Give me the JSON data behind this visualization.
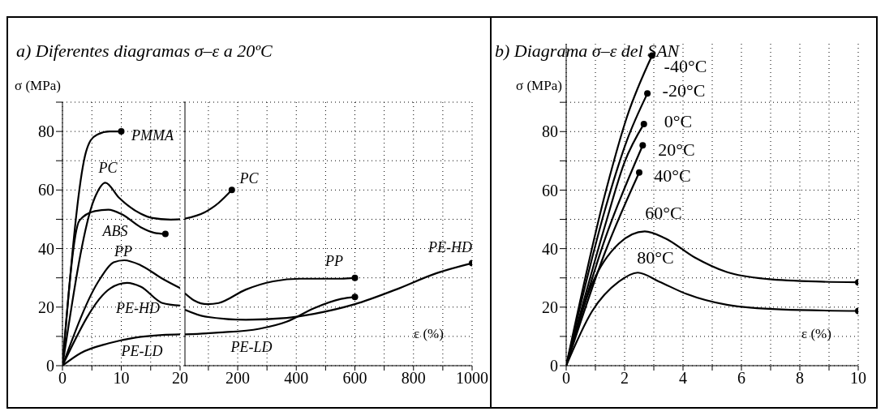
{
  "chart_data": [
    {
      "type": "line",
      "title": "a) Diferentes diagramas σ–ε a 20ºC",
      "ylabel": "σ (MPa)",
      "xlim": [
        0,
        20
      ],
      "ylim": [
        0,
        90
      ],
      "xticks": [
        0,
        {
          "value": 5,
          "label": null
        },
        10,
        {
          "value": 15,
          "label": null
        },
        20
      ],
      "yticks": [
        0,
        {
          "value": 10,
          "label": null
        },
        20,
        {
          "value": 30,
          "label": null
        },
        40,
        {
          "value": 50,
          "label": null
        },
        60,
        {
          "value": 70,
          "label": null
        },
        80,
        {
          "value": 90,
          "label": null
        }
      ],
      "grid": true,
      "marker": "none",
      "line_style": "solid",
      "series": [
        {
          "name": "PMMA",
          "color": "#000000",
          "x": [
            0,
            4,
            4.8,
            6,
            8,
            10
          ],
          "values": [
            0,
            73,
            77,
            79,
            80,
            80
          ]
        },
        {
          "name": "PC",
          "color": "#000000",
          "x": [
            0,
            5.5,
            7.3,
            9.6,
            13.3,
            15.1,
            18.4,
            20
          ],
          "values": [
            0,
            57.4,
            62.5,
            57.4,
            51.9,
            50.5,
            49.9,
            50
          ]
        },
        {
          "name": "ABS",
          "color": "#000000",
          "x": [
            0,
            2.9,
            5.5,
            7.8,
            10.1,
            13.3,
            15.6,
            17.5
          ],
          "values": [
            0,
            49.6,
            52.8,
            53.3,
            51.7,
            47.3,
            45.4,
            45
          ]
        },
        {
          "name": "PP",
          "color": "#000000",
          "x": [
            0,
            6.4,
            8.7,
            10.5,
            13.3,
            17,
            20
          ],
          "values": [
            0,
            29.7,
            35.3,
            36,
            34.3,
            29.7,
            26.5
          ]
        },
        {
          "name": "PE-HD",
          "color": "#000000",
          "x": [
            0,
            8.2,
            11,
            13.3,
            17,
            20
          ],
          "values": [
            0,
            26.5,
            28.3,
            27,
            21.4,
            20.5
          ]
        },
        {
          "name": "PE-LD",
          "color": "#000000",
          "x": [
            0,
            3.1,
            7.8,
            12.4,
            17,
            20
          ],
          "values": [
            0,
            4.3,
            7.6,
            9.6,
            10.5,
            10.7
          ]
        },
        {
          "type": "scatter",
          "color": "#000000",
          "marker": "circle",
          "x": [
            10,
            17.5
          ],
          "values": [
            80,
            45
          ]
        }
      ]
    },
    {
      "type": "line",
      "xlabel": "ε (%)",
      "xlim": [
        20,
        1000
      ],
      "ylim": [
        0,
        90
      ],
      "tick_labels": "x",
      "xticks": [
        {
          "value": 100,
          "label": null
        },
        200,
        {
          "value": 300,
          "label": null
        },
        400,
        {
          "value": 500,
          "label": null
        },
        600,
        {
          "value": 700,
          "label": null
        },
        800,
        {
          "value": 900,
          "label": null
        },
        1000
      ],
      "yticks": [
        {
          "value": 0,
          "label": null
        },
        {
          "value": 10,
          "label": null
        },
        {
          "value": 20,
          "label": null
        },
        {
          "value": 30,
          "label": null
        },
        {
          "value": 40,
          "label": null
        },
        {
          "value": 50,
          "label": null
        },
        {
          "value": 60,
          "label": null
        },
        {
          "value": 70,
          "label": null
        },
        {
          "value": 80,
          "label": null
        },
        {
          "value": 90,
          "label": null
        }
      ],
      "grid": true,
      "marker": "none",
      "line_style": "solid",
      "series": [
        {
          "name": "PC",
          "color": "#000000",
          "x": [
            20,
            88,
            135,
            180
          ],
          "values": [
            50.2,
            52.4,
            55.6,
            60
          ]
        },
        {
          "name": "PP",
          "color": "#000000",
          "x": [
            20,
            51,
            97,
            135,
            228,
            321,
            414,
            553,
            600
          ],
          "values": [
            24.7,
            22.3,
            21,
            21.4,
            26,
            28.8,
            29.7,
            29.7,
            30
          ]
        },
        {
          "name": "PE-HD",
          "color": "#000000",
          "x": [
            20,
            88,
            228,
            367,
            460,
            600,
            740,
            879,
            1000
          ],
          "values": [
            19.1,
            16.8,
            15.7,
            16.3,
            17.7,
            21,
            26,
            31.6,
            35
          ]
        },
        {
          "name": "PE-LD",
          "color": "#000000",
          "x": [
            20,
            135,
            274,
            367,
            460,
            553,
            600
          ],
          "values": [
            10.7,
            11.3,
            12.6,
            15,
            19.6,
            22.8,
            23.5
          ]
        },
        {
          "type": "scatter",
          "color": "#000000",
          "marker": "circle",
          "x": [
            180,
            600,
            1000,
            600
          ],
          "values": [
            60,
            30,
            35,
            23.5
          ]
        }
      ]
    },
    {
      "type": "line",
      "title": "b) Diagrama σ–ε del SAN",
      "ylabel": "σ (MPa)",
      "xlabel": "ε (%)",
      "xlim": [
        0,
        10
      ],
      "ylim": [
        0,
        110
      ],
      "xticks": [
        0,
        {
          "value": 1,
          "label": null
        },
        2,
        {
          "value": 3,
          "label": null
        },
        4,
        {
          "value": 5,
          "label": null
        },
        6,
        {
          "value": 7,
          "label": null
        },
        8,
        {
          "value": 9,
          "label": null
        },
        10
      ],
      "yticks": [
        0,
        {
          "value": 10,
          "label": null
        },
        20,
        {
          "value": 30,
          "label": null
        },
        40,
        {
          "value": 50,
          "label": null
        },
        60,
        {
          "value": 70,
          "label": null
        },
        80,
        {
          "value": 90,
          "label": null
        }
      ],
      "grid": true,
      "marker": "none",
      "line_style": "solid",
      "series": [
        {
          "name": "-40°C",
          "color": "#000000",
          "x": [
            0,
            1.34,
            2.08,
            2.94
          ],
          "values": [
            0,
            59,
            85,
            106
          ]
        },
        {
          "name": "-20°C",
          "color": "#000000",
          "x": [
            0,
            1.34,
            2.08,
            2.78
          ],
          "values": [
            0,
            53.7,
            77,
            93
          ]
        },
        {
          "name": "0°C",
          "color": "#000000",
          "x": [
            0,
            1.34,
            2,
            2.66
          ],
          "values": [
            0,
            48.2,
            69.6,
            82.6
          ]
        },
        {
          "name": "20°C",
          "color": "#000000",
          "x": [
            0,
            1.34,
            2.62
          ],
          "values": [
            0,
            43.6,
            75.3
          ]
        },
        {
          "name": "40°C",
          "color": "#000000",
          "x": [
            0,
            1.34,
            2.5
          ],
          "values": [
            0,
            39,
            66
          ]
        },
        {
          "name": "60°C",
          "color": "#000000",
          "x": [
            0,
            0.88,
            1.8,
            2.69,
            3.38,
            4.4,
            5.5,
            6.9,
            8.75,
            10
          ],
          "values": [
            0,
            27.8,
            41.7,
            45.9,
            43.6,
            37,
            32,
            29.6,
            28.7,
            28.5
          ]
        },
        {
          "name": "80°C",
          "color": "#000000",
          "x": [
            0,
            0.88,
            1.8,
            2.45,
            3.19,
            4.12,
            5.5,
            7.36,
            10
          ],
          "values": [
            0,
            18.5,
            28.7,
            31.8,
            28.7,
            24.5,
            20.8,
            19.2,
            18.7
          ]
        },
        {
          "type": "scatter",
          "color": "#000000",
          "marker": "circle",
          "x": [
            2.94,
            2.78,
            2.66,
            2.62,
            2.5,
            10,
            10
          ],
          "values": [
            106,
            93,
            82.6,
            75.3,
            66,
            28.5,
            18.7
          ]
        }
      ]
    }
  ]
}
